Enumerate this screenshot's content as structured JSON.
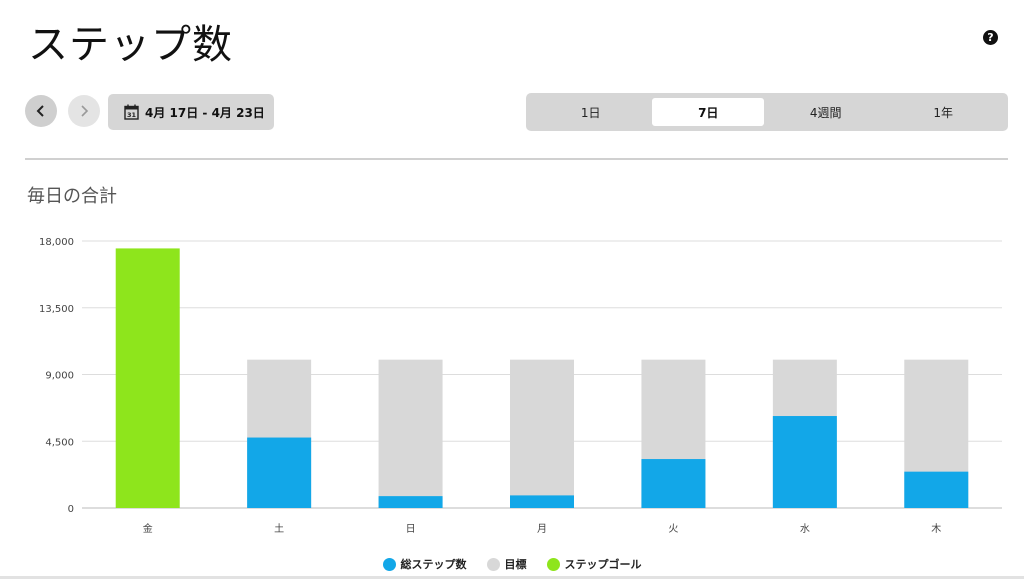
{
  "page": {
    "title": "ステップ数",
    "help_icon": "question-icon",
    "date_range": "4月 17日 - 4月 23日",
    "section_title": "毎日の合計"
  },
  "nav": {
    "prev_icon": "chevron-left-icon",
    "next_icon": "chevron-right-icon",
    "calendar_icon": "calendar-icon",
    "calendar_day": "31"
  },
  "tabs": [
    {
      "label": "1日",
      "active": false
    },
    {
      "label": "7日",
      "active": true
    },
    {
      "label": "4週間",
      "active": false
    },
    {
      "label": "1年",
      "active": false
    }
  ],
  "chart_data": {
    "type": "bar",
    "stacked": true,
    "categories": [
      "金",
      "土",
      "日",
      "月",
      "火",
      "水",
      "木"
    ],
    "series": [
      {
        "name": "総ステップ数",
        "color": "#12a7e8",
        "values": [
          17500,
          4750,
          800,
          850,
          3300,
          6200,
          2450
        ]
      },
      {
        "name": "目標",
        "color": "#d8d8d8",
        "values": [
          10000,
          10000,
          10000,
          10000,
          10000,
          10000,
          10000
        ]
      },
      {
        "name": "ステップゴール",
        "color": "#8ee51c",
        "values": [
          true,
          false,
          false,
          false,
          false,
          false,
          false
        ]
      }
    ],
    "y_ticks": [
      "0",
      "4,500",
      "9,000",
      "13,500",
      "18,000"
    ],
    "y_tick_values": [
      0,
      4500,
      9000,
      13500,
      18000
    ],
    "ylim": [
      0,
      18000
    ],
    "grid": true,
    "legend_position": "bottom"
  }
}
